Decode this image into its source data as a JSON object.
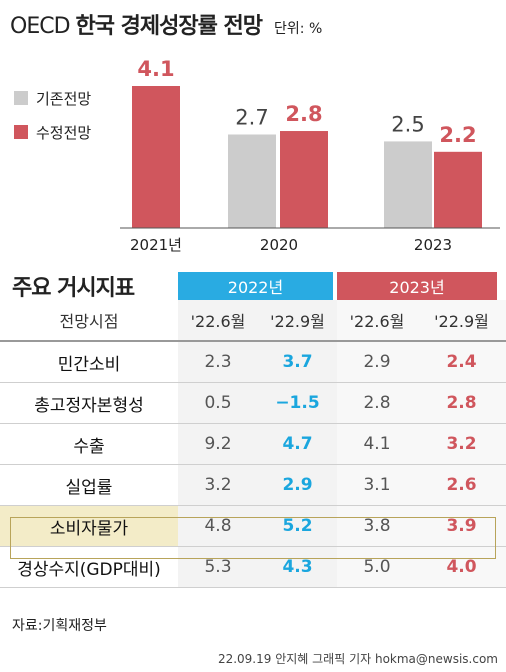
{
  "title": {
    "prefix": "OECD",
    "main": "한국 경제성장률 전망",
    "unit": "단위: %"
  },
  "colors": {
    "prior": "#cccccc",
    "revised": "#d0565d",
    "y2022": "#29abe2",
    "y2023": "#d0565d",
    "blue_text": "#1aa6de",
    "red_text": "#d0565d"
  },
  "chart_data": {
    "type": "bar",
    "categories": [
      "2021년",
      "2020",
      "2023"
    ],
    "series": [
      {
        "name": "기존전망",
        "values": [
          null,
          2.7,
          2.5
        ]
      },
      {
        "name": "수정전망",
        "values": [
          4.1,
          2.8,
          2.2
        ]
      }
    ],
    "data_labels": [
      [
        "",
        "4.1"
      ],
      [
        "2.7",
        "2.8"
      ],
      [
        "2.5",
        "2.2"
      ]
    ],
    "ylim": [
      0,
      4.1
    ],
    "legend_position": "left"
  },
  "indicators": {
    "section_title": "주요 거시지표",
    "year_headers": [
      "2022년",
      "2023년"
    ],
    "sub_label": "전망시점",
    "sub_headers": [
      "'22.6월",
      "'22.9월",
      "'22.6월",
      "'22.9월"
    ],
    "rows": [
      {
        "label": "민간소비",
        "values": [
          "2.3",
          "3.7",
          "2.9",
          "2.4"
        ]
      },
      {
        "label": "총고정자본형성",
        "values": [
          "0.5",
          "−1.5",
          "2.8",
          "2.8"
        ]
      },
      {
        "label": "수출",
        "values": [
          "9.2",
          "4.7",
          "4.1",
          "3.2"
        ]
      },
      {
        "label": "실업률",
        "values": [
          "3.2",
          "2.9",
          "3.1",
          "2.6"
        ]
      },
      {
        "label": "소비자물가",
        "values": [
          "4.8",
          "5.2",
          "3.8",
          "3.9"
        ]
      },
      {
        "label": "경상수지(GDP대비)",
        "values": [
          "5.3",
          "4.3",
          "5.0",
          "4.0"
        ]
      }
    ]
  },
  "source": "자료:기획재정부",
  "credit": "22.09.19 안지혜 그래픽 기자 hokma@newsis.com"
}
